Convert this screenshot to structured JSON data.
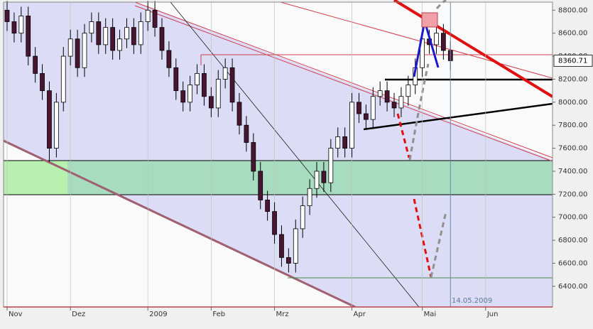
{
  "chart_data": {
    "type": "candlestick",
    "categories": [
      "Nov",
      null,
      null,
      null,
      null,
      null,
      null,
      null,
      null,
      "Dez",
      null,
      null,
      null,
      null,
      null,
      null,
      null,
      null,
      null,
      null,
      "2009",
      null,
      null,
      null,
      null,
      null,
      null,
      null,
      null,
      "Feb",
      null,
      null,
      null,
      null,
      null,
      null,
      null,
      null,
      "Mrz",
      null,
      null,
      null,
      null,
      null,
      null,
      null,
      null,
      null,
      null,
      "Apr",
      null,
      null,
      null,
      null,
      null,
      null,
      null,
      null,
      null,
      "Mai",
      null,
      null,
      null,
      null,
      null,
      null,
      null,
      null,
      "Jun",
      null,
      null,
      null,
      null,
      null,
      null,
      null,
      null,
      null
    ],
    "open": [
      8800,
      8700,
      8600,
      8750,
      8400,
      8250,
      8100,
      7600,
      8000,
      8400,
      8550,
      8300,
      8600,
      8700,
      8500,
      8650,
      8450,
      8550,
      8650,
      8500,
      8700,
      8800,
      8650,
      8450,
      8300,
      8100,
      8000,
      8150,
      8250,
      8050,
      7950,
      8200,
      8300,
      8000,
      7800,
      7650,
      7400,
      7150,
      7050,
      6850,
      6650,
      6600,
      6900,
      7100,
      7250,
      7400,
      7300,
      7600,
      7700,
      7600,
      8000,
      7900,
      7850,
      8050,
      8100,
      8000,
      7950,
      8050,
      8150,
      8300,
      8550,
      8500,
      8600,
      8450,
      null,
      null,
      null,
      null,
      null,
      null,
      null,
      null,
      null,
      null,
      null,
      null,
      null,
      null
    ],
    "high": [
      8880,
      8780,
      8830,
      8830,
      8480,
      8330,
      8180,
      8080,
      8480,
      8630,
      8630,
      8680,
      8780,
      8780,
      8730,
      8730,
      8630,
      8730,
      8730,
      8780,
      8880,
      8880,
      8730,
      8530,
      8380,
      8180,
      8230,
      8330,
      8330,
      8130,
      8280,
      8380,
      8380,
      8080,
      7880,
      7730,
      7480,
      7230,
      7130,
      6930,
      6730,
      6980,
      7180,
      7330,
      7480,
      7480,
      7680,
      7780,
      7780,
      8080,
      8080,
      7980,
      8130,
      8180,
      8180,
      8080,
      8130,
      8230,
      8380,
      8630,
      8630,
      8680,
      8680,
      8530,
      null,
      null,
      null,
      null,
      null,
      null,
      null,
      null,
      null,
      null,
      null,
      null,
      null,
      null
    ],
    "low": [
      8620,
      8520,
      8520,
      8320,
      8170,
      8020,
      7480,
      7520,
      7920,
      8320,
      8220,
      8220,
      8520,
      8420,
      8420,
      8370,
      8370,
      8470,
      8420,
      8420,
      8620,
      8570,
      8370,
      8220,
      8020,
      7920,
      7920,
      8070,
      7970,
      7870,
      7870,
      8120,
      7920,
      7720,
      7570,
      7320,
      7070,
      6970,
      6770,
      6570,
      6520,
      6520,
      6820,
      7020,
      7170,
      7220,
      7220,
      7520,
      7520,
      7520,
      7820,
      7770,
      7770,
      7970,
      7920,
      7870,
      7870,
      7970,
      8070,
      8220,
      8420,
      8420,
      8370,
      8280,
      null,
      null,
      null,
      null,
      null,
      null,
      null,
      null,
      null,
      null,
      null,
      null,
      null,
      null
    ],
    "close": [
      8700,
      8600,
      8750,
      8400,
      8250,
      8100,
      7600,
      8000,
      8400,
      8550,
      8300,
      8600,
      8700,
      8500,
      8650,
      8450,
      8550,
      8650,
      8500,
      8700,
      8800,
      8650,
      8450,
      8300,
      8100,
      8000,
      8150,
      8250,
      8050,
      7950,
      8200,
      8300,
      8000,
      7800,
      7650,
      7400,
      7150,
      7050,
      6850,
      6650,
      6600,
      6900,
      7100,
      7250,
      7400,
      7300,
      7600,
      7700,
      7600,
      8000,
      7900,
      7850,
      8050,
      8100,
      8000,
      7950,
      8050,
      8150,
      8300,
      8550,
      8500,
      8600,
      8450,
      8360.71,
      null,
      null,
      null,
      null,
      null,
      null,
      null,
      null,
      null,
      null,
      null,
      null,
      null,
      null
    ],
    "up_color": "#ffffff",
    "down_color": "#4a1530",
    "ylim": [
      6220,
      8870
    ],
    "yticks": [
      {
        "value": 6400,
        "label": "6400.00"
      },
      {
        "value": 6600,
        "label": "6600.00"
      },
      {
        "value": 6800,
        "label": "6800.00"
      },
      {
        "value": 7000,
        "label": "7000.00"
      },
      {
        "value": 7200,
        "label": "7200.00"
      },
      {
        "value": 7400,
        "label": "7400.00"
      },
      {
        "value": 7600,
        "label": "7600.00"
      },
      {
        "value": 7800,
        "label": "7800.00"
      },
      {
        "value": 8000,
        "label": "8000.00"
      },
      {
        "value": 8200,
        "label": "8200.00"
      },
      {
        "value": 8400,
        "label": "8400.00"
      },
      {
        "value": 8600,
        "label": "8600.00"
      },
      {
        "value": 8800,
        "label": "8800.00"
      }
    ],
    "cursor_date": "14.05.2009"
  }
}
